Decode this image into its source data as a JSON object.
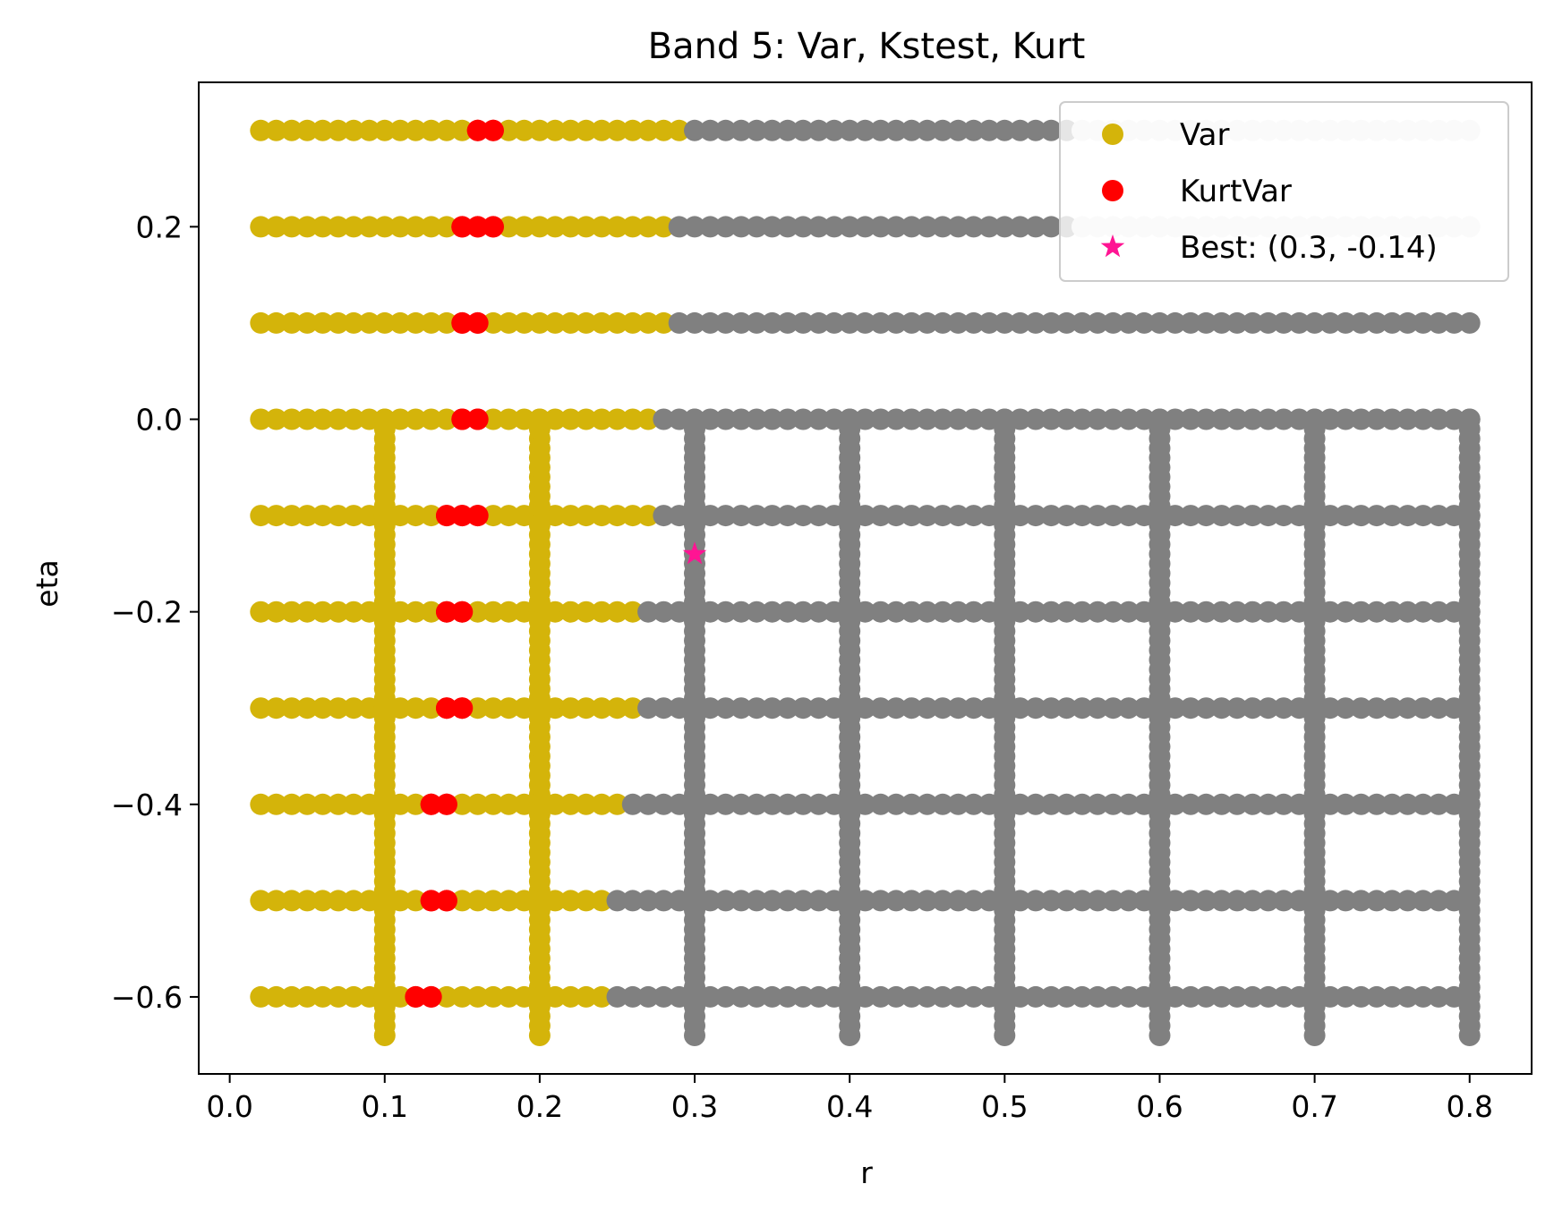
{
  "chart_data": {
    "type": "scatter",
    "title": "Band 5: Var, Kstest, Kurt",
    "xlabel": "r",
    "ylabel": "eta",
    "xlim": [
      -0.02,
      0.84
    ],
    "ylim": [
      -0.68,
      0.35
    ],
    "xticks": [
      0.0,
      0.1,
      0.2,
      0.3,
      0.4,
      0.5,
      0.6,
      0.7,
      0.8
    ],
    "xtick_labels": [
      "0.0",
      "0.1",
      "0.2",
      "0.3",
      "0.4",
      "0.5",
      "0.6",
      "0.7",
      "0.8"
    ],
    "yticks": [
      0.2,
      0.0,
      -0.2,
      -0.4,
      -0.6
    ],
    "ytick_labels": [
      "0.2",
      "0.0",
      "−0.2",
      "−0.4",
      "−0.6"
    ],
    "grid": false,
    "legend_position": "top-right",
    "colors": {
      "var": "#d4b40a",
      "kurtvar": "#ff0000",
      "gray": "#808080",
      "lightgray": "#e6e6e6",
      "best": "#ff1493"
    },
    "series": [
      {
        "name": "Var",
        "marker": "circle",
        "color": "#d4b40a"
      },
      {
        "name": "KurtVar",
        "marker": "circle",
        "color": "#ff0000"
      },
      {
        "name": "Best: (0.3, -0.14)",
        "marker": "star",
        "color": "#ff1493"
      }
    ],
    "rows": [
      {
        "eta": 0.3,
        "var_end": 0.29,
        "red": [
          0.16,
          0.17
        ],
        "gray_end": 0.54,
        "light_end": 0.8
      },
      {
        "eta": 0.2,
        "var_end": 0.28,
        "red": [
          0.15,
          0.16,
          0.17
        ],
        "gray_end": 0.54,
        "light_end": 0.8
      },
      {
        "eta": 0.1,
        "var_end": 0.28,
        "red": [
          0.15,
          0.16
        ],
        "gray_end": 0.8
      },
      {
        "eta": 0.0,
        "var_end": 0.27,
        "red": [
          0.15,
          0.16
        ],
        "gray_end": 0.8
      },
      {
        "eta": -0.1,
        "var_end": 0.27,
        "red": [
          0.14,
          0.15,
          0.16
        ],
        "gray_end": 0.8
      },
      {
        "eta": -0.2,
        "var_end": 0.26,
        "red": [
          0.14,
          0.15
        ],
        "gray_end": 0.8
      },
      {
        "eta": -0.3,
        "var_end": 0.26,
        "red": [
          0.14,
          0.15
        ],
        "gray_end": 0.8
      },
      {
        "eta": -0.4,
        "var_end": 0.25,
        "red": [
          0.13,
          0.14
        ],
        "gray_end": 0.8
      },
      {
        "eta": -0.5,
        "var_end": 0.24,
        "red": [
          0.13,
          0.14
        ],
        "gray_end": 0.8
      },
      {
        "eta": -0.6,
        "var_end": 0.24,
        "red": [
          0.12,
          0.13
        ],
        "gray_end": 0.8
      }
    ],
    "row_r_start": 0.02,
    "row_r_step": 0.01,
    "columns": [
      {
        "r": 0.1,
        "color": "var"
      },
      {
        "r": 0.2,
        "color": "var"
      },
      {
        "r": 0.3,
        "color": "gray"
      },
      {
        "r": 0.4,
        "color": "gray"
      },
      {
        "r": 0.5,
        "color": "gray"
      },
      {
        "r": 0.6,
        "color": "gray"
      },
      {
        "r": 0.7,
        "color": "gray"
      },
      {
        "r": 0.8,
        "color": "gray"
      }
    ],
    "column_eta_range": [
      -0.64,
      0.0
    ],
    "column_eta_step": 0.01,
    "best": {
      "r": 0.3,
      "eta": -0.14
    }
  }
}
